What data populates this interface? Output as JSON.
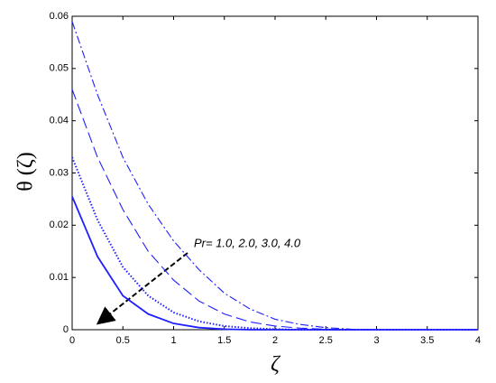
{
  "chart_data": {
    "type": "line",
    "x_label": "ζ",
    "y_label": "θ (ζ)",
    "annotation": "Pr= 1.0, 2.0, 3.0, 4.0",
    "x": [
      0,
      0.25,
      0.5,
      0.75,
      1,
      1.25,
      1.5,
      1.75,
      2,
      2.25,
      2.5,
      2.75,
      3,
      3.25,
      3.5,
      3.75,
      4
    ],
    "series": [
      {
        "color": "#1f1fff",
        "dash": "dashdot",
        "values": [
          0.059,
          0.045,
          0.033,
          0.024,
          0.017,
          0.0115,
          0.007,
          0.004,
          0.002,
          0.001,
          0.0004,
          0.0001,
          0,
          0,
          0,
          0,
          0
        ]
      },
      {
        "color": "#1f1fff",
        "dash": "longdash",
        "values": [
          0.046,
          0.033,
          0.023,
          0.015,
          0.0095,
          0.0055,
          0.003,
          0.0015,
          0.0007,
          0.0003,
          0.0001,
          0,
          0,
          0,
          0,
          0,
          0
        ]
      },
      {
        "color": "#1f1fff",
        "dash": "dotted",
        "values": [
          0.033,
          0.021,
          0.012,
          0.0065,
          0.0033,
          0.0016,
          0.0007,
          0.0003,
          0.0001,
          0,
          0,
          0,
          0,
          0,
          0,
          0,
          0
        ]
      },
      {
        "color": "#1f1fff",
        "dash": "solid",
        "values": [
          0.0255,
          0.014,
          0.0065,
          0.003,
          0.0012,
          0.0004,
          0.0001,
          0,
          0,
          0,
          0,
          0,
          0,
          0,
          0,
          0,
          0
        ]
      }
    ],
    "xlim": [
      0,
      4
    ],
    "xticks": [
      0,
      0.5,
      1,
      1.5,
      2,
      2.5,
      3,
      3.5,
      4
    ],
    "ylim": [
      0,
      0.06
    ],
    "yticks": [
      0,
      0.01,
      0.02,
      0.03,
      0.04,
      0.05,
      0.06
    ],
    "grid": false
  }
}
